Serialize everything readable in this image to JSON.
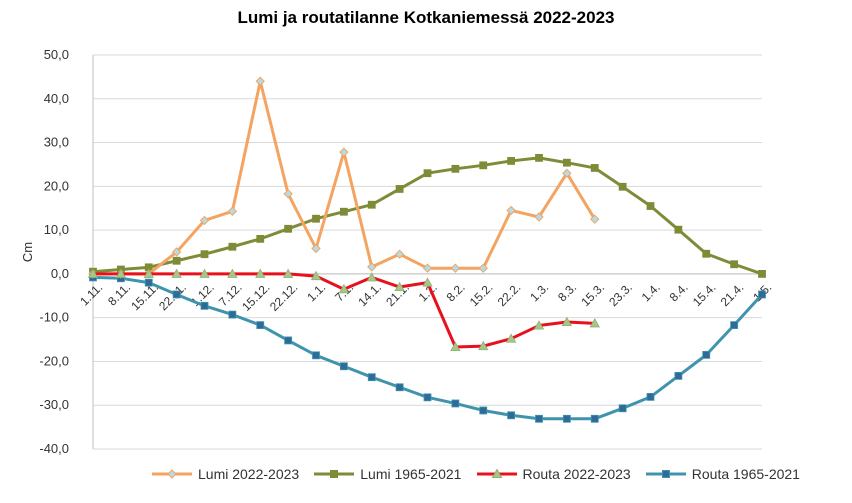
{
  "chart_data": {
    "type": "line",
    "title": "Lumi ja routatilanne Kotkaniemessä 2022-2023",
    "xlabel": "",
    "ylabel": "Cm",
    "ylim": [
      -40,
      50
    ],
    "yticks": [
      "-40,0",
      "-30,0",
      "-20,0",
      "-10,0",
      "0,0",
      "10,0",
      "20,0",
      "30,0",
      "40,0",
      "50,0"
    ],
    "categories": [
      "1.11.",
      "8.11.",
      "15.11.",
      "22.11.",
      "1.12.",
      "7.12.",
      "15.12.",
      "22.12.",
      "1.1.",
      "7.1.",
      "14.1.",
      "21.1.",
      "1.2.",
      "8.2.",
      "15.2.",
      "22.2.",
      "1.3.",
      "8.3.",
      "15.3.",
      "23.3.",
      "1.4.",
      "8.4.",
      "15.4.",
      "21.4.",
      "1.5."
    ],
    "tick_labels": [
      "1.11.",
      "8.11.",
      "15.11.",
      "22.11.",
      "1.12.",
      "7.12.",
      "15.12.",
      "22.12.",
      "1.1.",
      "7.1.",
      "14.1.",
      "21.1.",
      "1.2.",
      "8.2.",
      "15.2.",
      "22.2.",
      "1.3.",
      "8.3.",
      "15.3.",
      "23.3.",
      "1.4.",
      "8.4.",
      "15.4.",
      "21.4.",
      "1.5."
    ],
    "grid": "horizontal",
    "legend_position": "bottom",
    "series": [
      {
        "name": "Lumi 2022-2023",
        "color": "#f4a460",
        "marker": "diamond",
        "marker_fill": "#b0dde8",
        "values": [
          0,
          0,
          0,
          5,
          12.2,
          14.3,
          44,
          18.3,
          5.8,
          27.8,
          1.6,
          4.5,
          1.3,
          1.3,
          1.3,
          14.5,
          13,
          23,
          12.5,
          null,
          null,
          null,
          null,
          null,
          null
        ]
      },
      {
        "name": "Lumi 1965-2021",
        "color": "#7f8b37",
        "marker": "square",
        "marker_fill": "#7f8b37",
        "values": [
          0.5,
          1,
          1.5,
          3,
          4.5,
          6.2,
          8,
          10.3,
          12.6,
          14.2,
          15.8,
          19.4,
          23,
          24,
          24.8,
          25.8,
          26.5,
          25.4,
          24.2,
          19.9,
          15.5,
          10.1,
          4.6,
          2.2,
          0
        ]
      },
      {
        "name": "Routa 2022-2023",
        "color": "#e8101c",
        "marker": "triangle",
        "marker_fill": "#a6c68a",
        "values": [
          0,
          0,
          0,
          0,
          0,
          0,
          0,
          0,
          -0.5,
          -3.5,
          -0.8,
          -3,
          -2,
          -16.7,
          -16.5,
          -14.8,
          -11.8,
          -11,
          -11.3,
          null,
          null,
          null,
          null,
          null,
          null
        ]
      },
      {
        "name": "Routa 1965-2021",
        "color": "#3f94ad",
        "marker": "square",
        "marker_fill": "#2e6b99",
        "values": [
          -0.8,
          -1,
          -2,
          -4.7,
          -7.3,
          -9.3,
          -11.7,
          -15.2,
          -18.6,
          -21.1,
          -23.6,
          -25.9,
          -28.2,
          -29.6,
          -31.2,
          -32.3,
          -33.1,
          -33.1,
          -33.1,
          -30.7,
          -28.1,
          -23.3,
          -18.5,
          -11.7,
          -4.7
        ]
      }
    ]
  }
}
